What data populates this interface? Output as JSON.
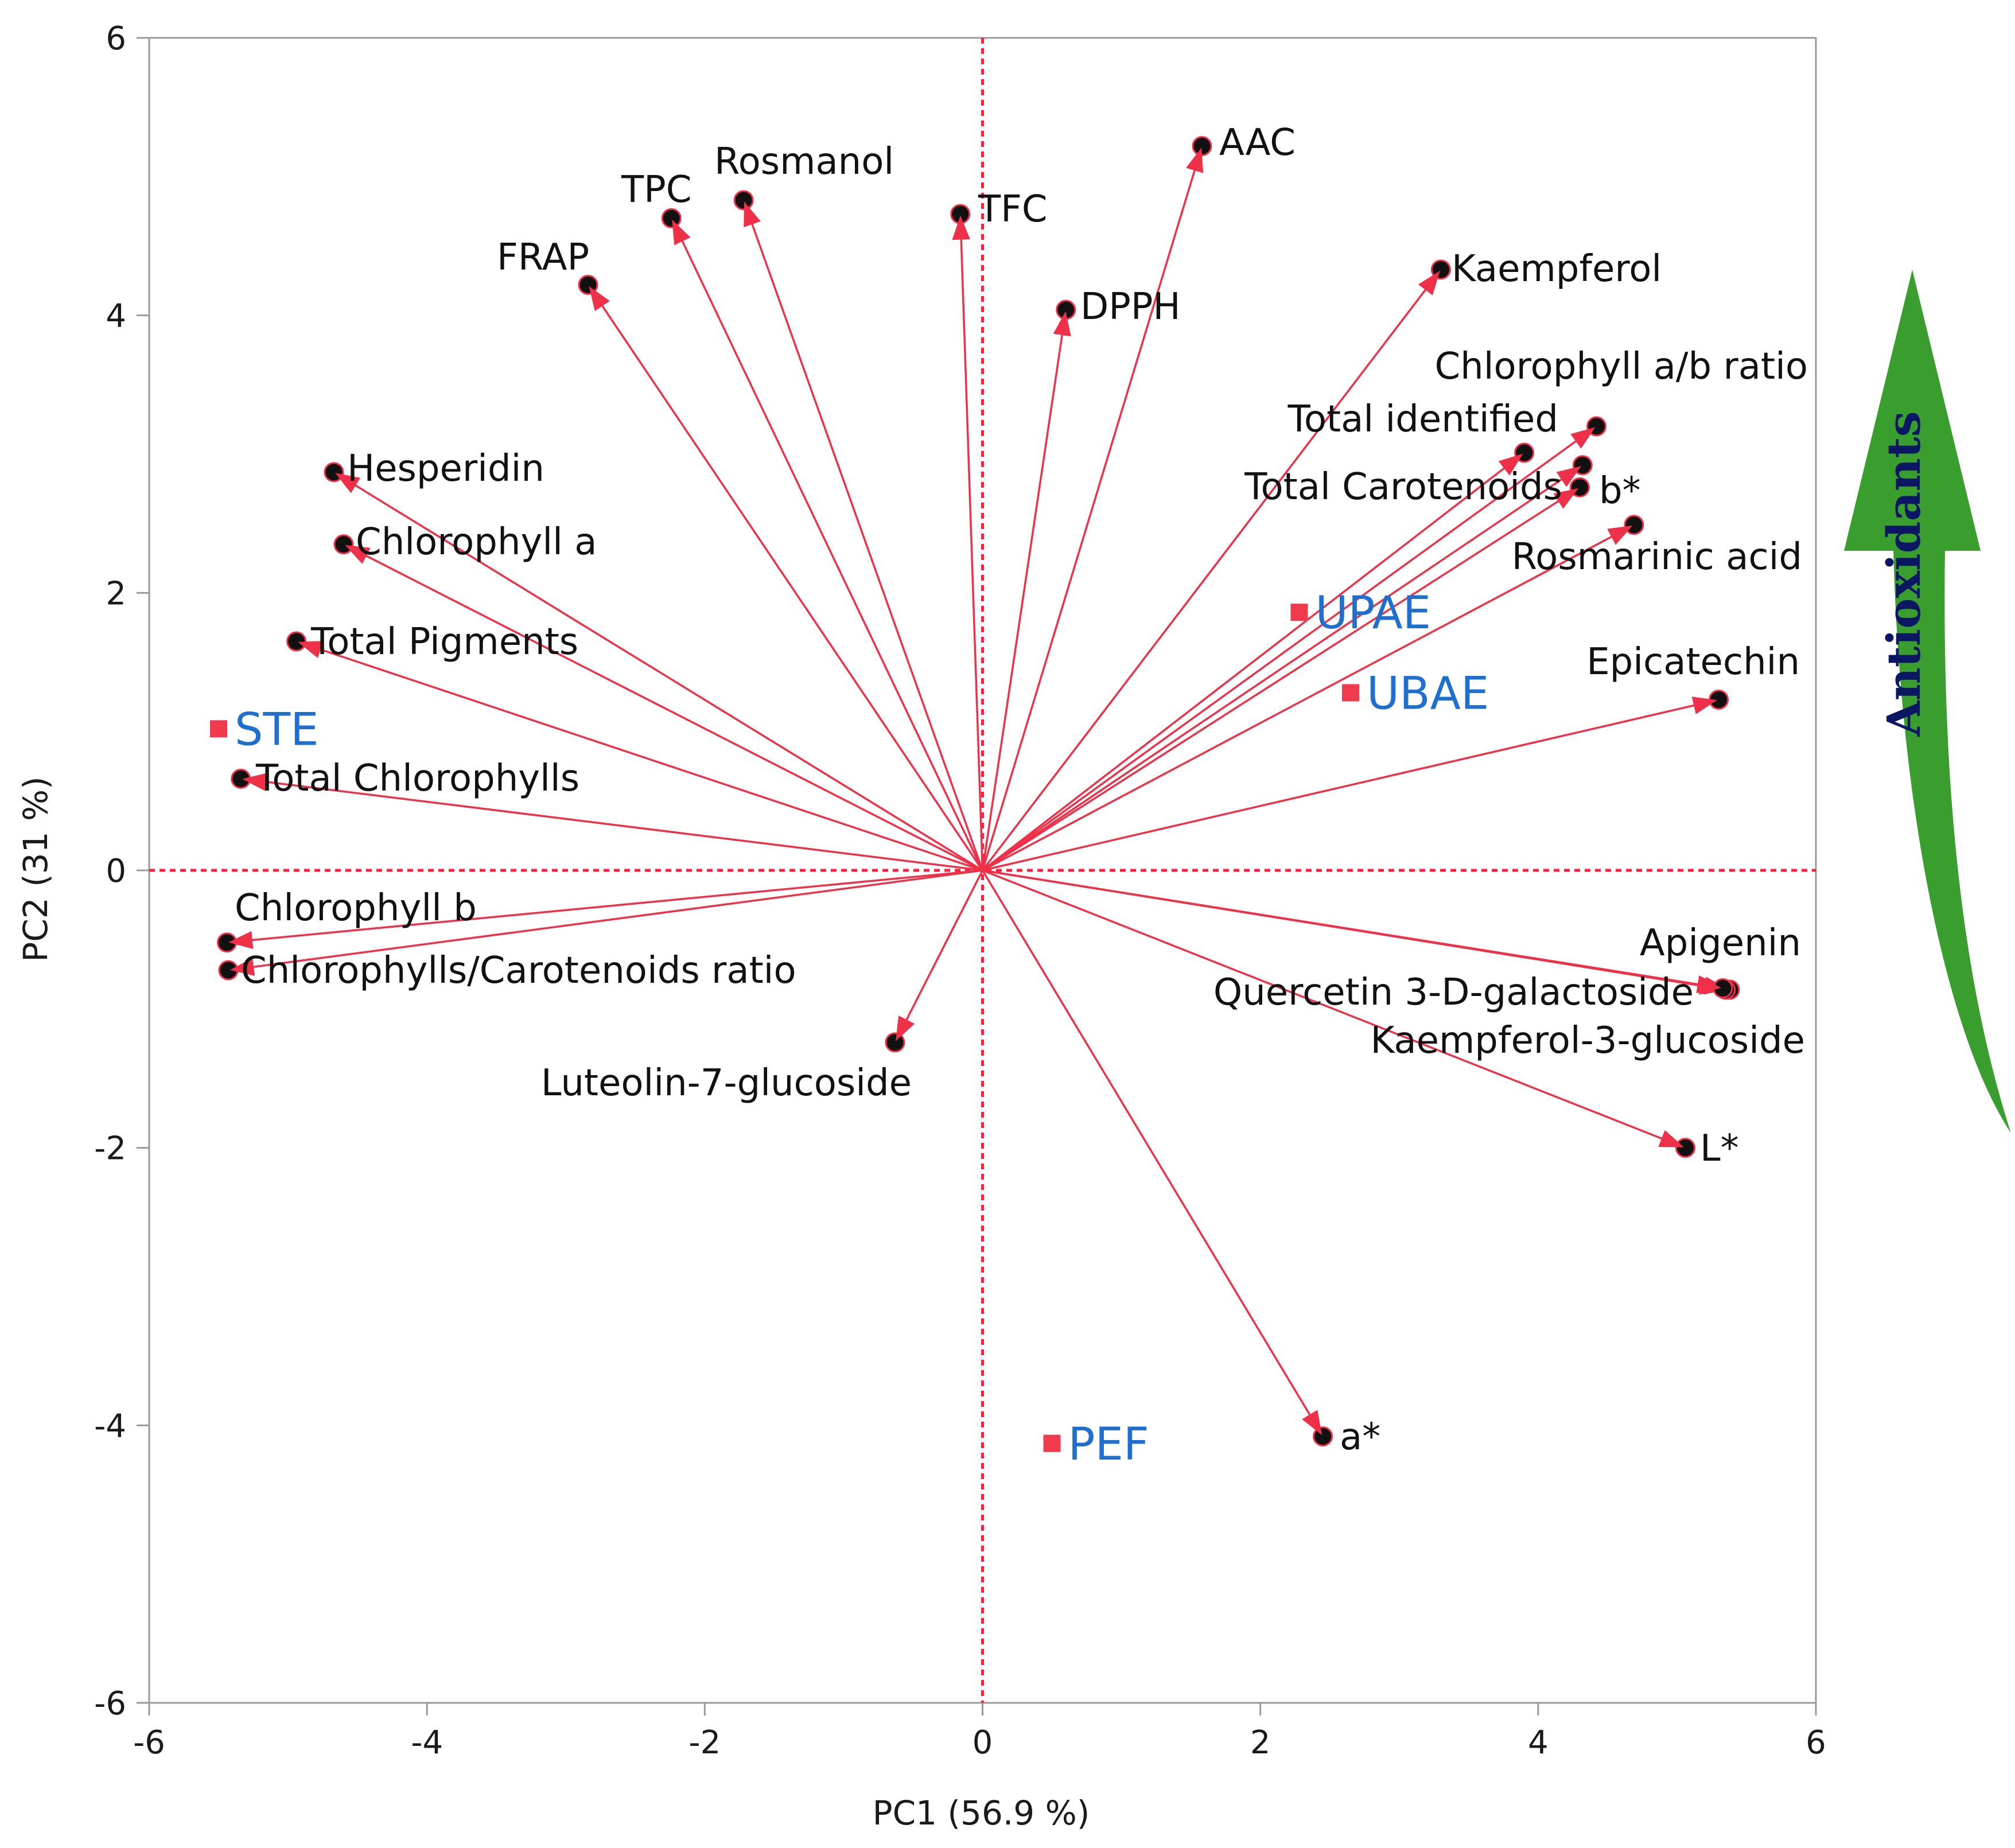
{
  "chart_data": {
    "type": "scatter",
    "subtype": "pca-biplot",
    "xlabel": "PC1  (56.9 %)",
    "ylabel": "PC2  (31 %)",
    "xlim": [
      -6,
      6
    ],
    "ylim": [
      -6,
      6
    ],
    "xticks": [
      "-6",
      "-4",
      "-2",
      "0",
      "2",
      "4",
      "6"
    ],
    "yticks": [
      "6",
      "4",
      "2",
      "0",
      "-2",
      "-4",
      "-6"
    ],
    "loadings": [
      {
        "label": "AAC",
        "x": 1.58,
        "y": 5.22
      },
      {
        "label": "TFC",
        "x": -0.16,
        "y": 4.73
      },
      {
        "label": "Rosmanol",
        "x": -1.72,
        "y": 4.83
      },
      {
        "label": "TPC",
        "x": -2.24,
        "y": 4.7
      },
      {
        "label": "FRAP",
        "x": -2.84,
        "y": 4.22
      },
      {
        "label": "DPPH",
        "x": 0.6,
        "y": 4.04
      },
      {
        "label": "Kaempferol",
        "x": 3.3,
        "y": 4.33
      },
      {
        "label": "Chlorophyll a/b ratio",
        "x": 4.42,
        "y": 3.2
      },
      {
        "label": "Total identified",
        "x": 3.9,
        "y": 3.01
      },
      {
        "label": "Total Carotenoids",
        "x": 4.32,
        "y": 2.92
      },
      {
        "label": "b*",
        "x": 4.3,
        "y": 2.76
      },
      {
        "label": "Rosmarinic acid",
        "x": 4.69,
        "y": 2.49
      },
      {
        "label": "Epicatechin",
        "x": 5.3,
        "y": 1.23
      },
      {
        "label": "Hesperidin",
        "x": -4.67,
        "y": 2.87
      },
      {
        "label": "Chlorophyll a",
        "x": -4.6,
        "y": 2.35
      },
      {
        "label": "Total Pigments",
        "x": -4.94,
        "y": 1.65
      },
      {
        "label": "Total Chlorophylls",
        "x": -5.34,
        "y": 0.66
      },
      {
        "label": "Chlorophyll b",
        "x": -5.44,
        "y": -0.52
      },
      {
        "label": "Chlorophylls/Carotenoids ratio",
        "x": -5.43,
        "y": -0.72
      },
      {
        "label": "Luteolin-7-glucoside",
        "x": -0.63,
        "y": -1.24
      },
      {
        "label": "Apigenin",
        "x": 5.38,
        "y": -0.86
      },
      {
        "label": "Quercetin 3-D-galactoside",
        "x": 5.35,
        "y": -0.86
      },
      {
        "label": "Kaempferol-3-glucoside",
        "x": 5.33,
        "y": -0.85
      },
      {
        "label": "L*",
        "x": 5.06,
        "y": -2.0
      },
      {
        "label": "a*",
        "x": 2.45,
        "y": -4.08
      }
    ],
    "scores": [
      {
        "label": "STE",
        "x": -5.5,
        "y": 1.02
      },
      {
        "label": "UPAE",
        "x": 2.28,
        "y": 1.86
      },
      {
        "label": "UBAE",
        "x": 2.65,
        "y": 1.28
      },
      {
        "label": "PEF",
        "x": 0.5,
        "y": -4.13
      }
    ],
    "annotation": {
      "text": "Antioxidants",
      "direction": "up",
      "color": "#3a9e2e"
    }
  }
}
